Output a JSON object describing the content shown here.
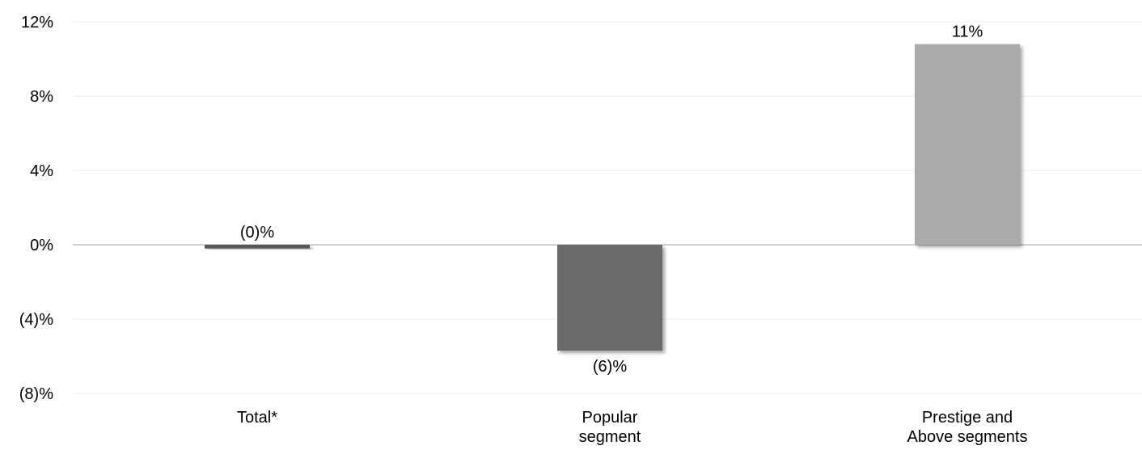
{
  "chart_data": {
    "type": "bar",
    "categories": [
      "Total*",
      "Popular segment",
      "Prestige and Above segments"
    ],
    "category_lines": [
      [
        "Total*"
      ],
      [
        "Popular",
        "segment"
      ],
      [
        "Prestige and",
        "Above segments"
      ]
    ],
    "values": [
      -0.2,
      -5.7,
      10.8
    ],
    "data_labels": [
      "(0)%",
      "(6)%",
      "11%"
    ],
    "bar_colors": [
      "#595959",
      "#6b6b6b",
      "#ababab"
    ],
    "ylim": [
      -8,
      12
    ],
    "yticks": [
      12,
      8,
      4,
      0,
      -4,
      -8
    ],
    "ytick_labels": [
      "12%",
      "8%",
      "4%",
      "0%",
      "(4)%",
      "(8)%"
    ],
    "grid": true,
    "gridline_color": "#eeeeee",
    "zero_line_color": "#d0d0d0",
    "title": "",
    "xlabel": "",
    "ylabel": ""
  }
}
